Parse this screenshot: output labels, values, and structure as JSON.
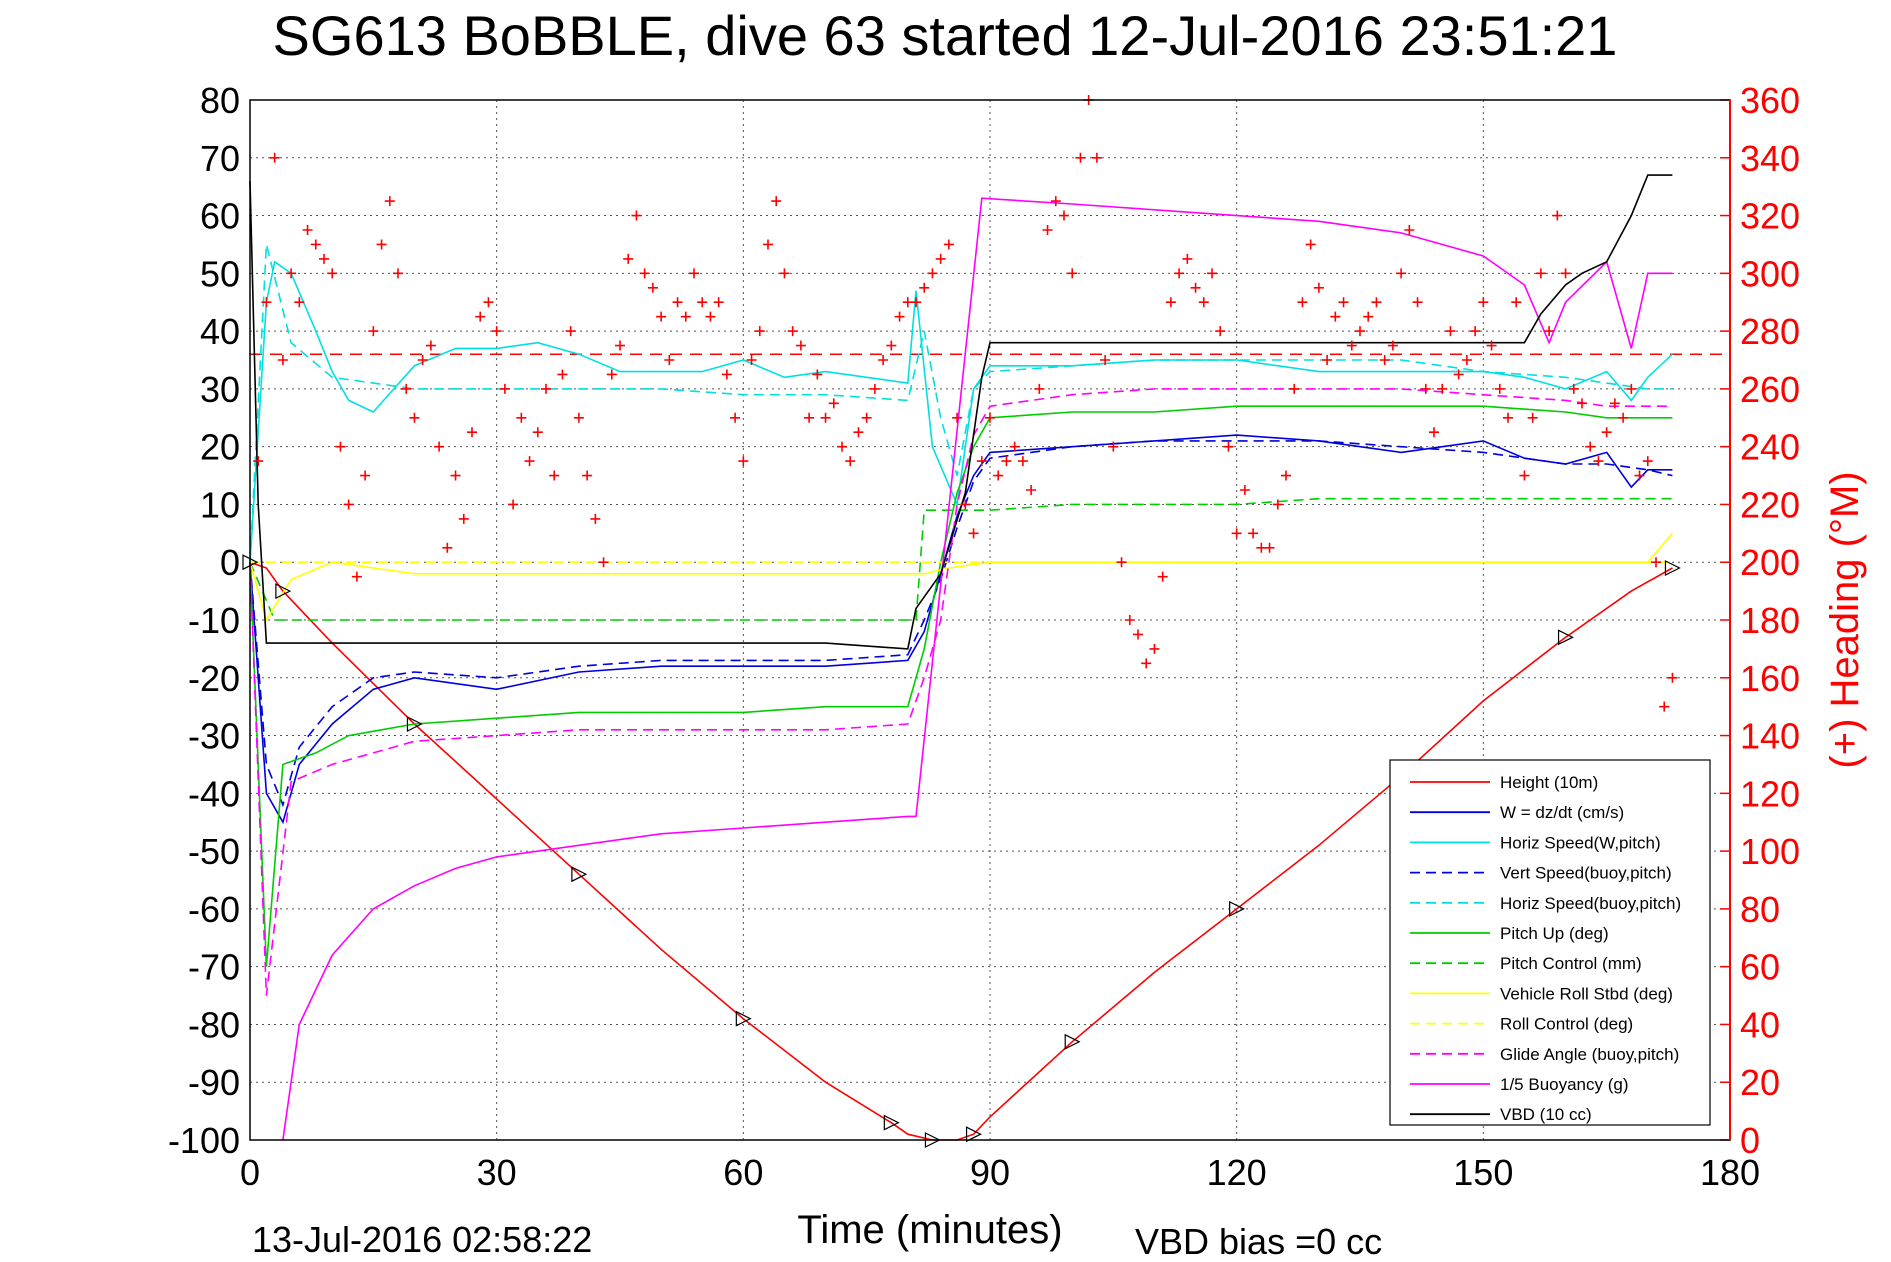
{
  "chart_data": {
    "type": "line",
    "title": "SG613 BoBBLE, dive 63 started 12-Jul-2016 23:51:21",
    "xlabel": "Time (minutes)",
    "ylabel_right": "(+) Heading (°M)",
    "xlim": [
      0,
      180
    ],
    "ylim_left": [
      -100,
      80
    ],
    "ylim_right": [
      0,
      360
    ],
    "x_ticks": [
      "0",
      "30",
      "60",
      "90",
      "120",
      "150",
      "180"
    ],
    "y_left_ticks": [
      "80",
      "70",
      "60",
      "50",
      "40",
      "30",
      "20",
      "10",
      "0",
      "-10",
      "-20",
      "-30",
      "-40",
      "-50",
      "-60",
      "-70",
      "-80",
      "-90",
      "-100"
    ],
    "y_right_ticks": [
      "360",
      "340",
      "320",
      "300",
      "280",
      "260",
      "240",
      "220",
      "200",
      "180",
      "160",
      "140",
      "120",
      "100",
      "80",
      "60",
      "40",
      "20",
      "0"
    ],
    "grid": true,
    "legend_position": "bottom-right",
    "footer_left": "13-Jul-2016 02:58:22",
    "footer_right": "VBD bias =0 cc",
    "heading_target": 272,
    "series": [
      {
        "name": "Height (10m)",
        "color": "#ff0000",
        "style": "solid",
        "x": [
          0,
          2,
          4,
          10,
          20,
          30,
          40,
          50,
          60,
          70,
          78,
          80,
          83,
          86,
          88,
          90,
          100,
          110,
          120,
          130,
          140,
          150,
          160,
          168,
          173
        ],
        "y": [
          0,
          -1,
          -5,
          -14,
          -28,
          -41,
          -54,
          -67,
          -79,
          -90,
          -97,
          -99,
          -100,
          -100,
          -99,
          -96,
          -83,
          -71,
          -60,
          -49,
          -37,
          -24,
          -13,
          -5,
          -1
        ]
      },
      {
        "name": "W = dz/dt (cm/s)",
        "color": "#0000dd",
        "style": "solid",
        "x": [
          0,
          2,
          4,
          6,
          10,
          15,
          20,
          30,
          40,
          50,
          60,
          70,
          80,
          82,
          84,
          86,
          88,
          90,
          100,
          110,
          120,
          130,
          140,
          150,
          155,
          160,
          165,
          168,
          170,
          173
        ],
        "y": [
          0,
          -40,
          -45,
          -35,
          -28,
          -22,
          -20,
          -22,
          -19,
          -18,
          -18,
          -18,
          -17,
          -12,
          -2,
          8,
          15,
          19,
          20,
          21,
          22,
          21,
          19,
          21,
          18,
          17,
          19,
          13,
          16,
          16
        ]
      },
      {
        "name": "Horiz Speed(W,pitch)",
        "color": "#00e0e0",
        "style": "solid",
        "x": [
          0,
          2,
          3,
          5,
          8,
          10,
          12,
          15,
          20,
          25,
          30,
          35,
          40,
          45,
          50,
          55,
          60,
          65,
          70,
          75,
          80,
          81,
          83,
          86,
          88,
          90,
          100,
          110,
          120,
          130,
          140,
          150,
          155,
          160,
          165,
          168,
          170,
          173
        ],
        "y": [
          0,
          45,
          52,
          50,
          40,
          33,
          28,
          26,
          34,
          37,
          37,
          38,
          36,
          33,
          33,
          33,
          35,
          32,
          33,
          32,
          31,
          47,
          20,
          10,
          30,
          34,
          34,
          35,
          35,
          33,
          33,
          33,
          32,
          30,
          33,
          28,
          32,
          36
        ]
      },
      {
        "name": "Vert Speed(buoy,pitch)",
        "color": "#0000dd",
        "style": "dashed",
        "x": [
          0,
          2,
          4,
          6,
          10,
          15,
          20,
          30,
          40,
          50,
          60,
          70,
          80,
          82,
          84,
          86,
          88,
          90,
          100,
          110,
          120,
          130,
          140,
          150,
          160,
          165,
          170,
          173
        ],
        "y": [
          0,
          -35,
          -42,
          -32,
          -25,
          -20,
          -19,
          -20,
          -18,
          -17,
          -17,
          -17,
          -16,
          -10,
          -3,
          6,
          14,
          18,
          20,
          21,
          21,
          21,
          20,
          19,
          17,
          17,
          16,
          15
        ]
      },
      {
        "name": "Horiz Speed(buoy,pitch)",
        "color": "#00e0e0",
        "style": "dashed",
        "x": [
          0,
          2,
          5,
          10,
          15,
          20,
          30,
          40,
          50,
          60,
          70,
          80,
          82,
          84,
          86,
          88,
          90,
          100,
          110,
          120,
          130,
          140,
          150,
          160,
          170,
          173
        ],
        "y": [
          0,
          55,
          38,
          32,
          31,
          30,
          30,
          30,
          30,
          29,
          29,
          28,
          40,
          25,
          15,
          30,
          33,
          34,
          35,
          35,
          35,
          35,
          33,
          32,
          30,
          30
        ]
      },
      {
        "name": "Pitch Up (deg)",
        "color": "#00cc00",
        "style": "solid",
        "x": [
          0,
          2,
          4,
          8,
          12,
          16,
          20,
          30,
          40,
          50,
          60,
          70,
          80,
          82,
          84,
          86,
          88,
          90,
          100,
          110,
          120,
          130,
          140,
          150,
          160,
          165,
          170,
          173
        ],
        "y": [
          0,
          -70,
          -35,
          -33,
          -30,
          -29,
          -28,
          -27,
          -26,
          -26,
          -26,
          -25,
          -25,
          -15,
          0,
          12,
          20,
          25,
          26,
          26,
          27,
          27,
          27,
          27,
          26,
          25,
          25,
          25
        ]
      },
      {
        "name": "Pitch Control (mm)",
        "color": "#00cc00",
        "style": "dashed",
        "x": [
          0,
          3,
          10,
          20,
          30,
          40,
          50,
          60,
          70,
          81,
          82,
          90,
          100,
          110,
          120,
          130,
          140,
          150,
          160,
          170,
          173
        ],
        "y": [
          0,
          -10,
          -10,
          -10,
          -10,
          -10,
          -10,
          -10,
          -10,
          -10,
          9,
          9,
          10,
          10,
          10,
          11,
          11,
          11,
          11,
          11,
          11
        ]
      },
      {
        "name": "Vehicle Roll Stbd (deg)",
        "color": "#ffff00",
        "style": "solid",
        "x": [
          0,
          2,
          5,
          10,
          20,
          30,
          40,
          50,
          60,
          70,
          80,
          82,
          85,
          90,
          100,
          110,
          120,
          130,
          140,
          150,
          160,
          170,
          173
        ],
        "y": [
          0,
          -10,
          -3,
          0,
          -2,
          -2,
          -2,
          -2,
          -2,
          -2,
          -2,
          -2,
          -1,
          0,
          0,
          0,
          0,
          0,
          0,
          0,
          0,
          0,
          5
        ]
      },
      {
        "name": "Roll Control (deg)",
        "color": "#ffff00",
        "style": "dashed",
        "x": [
          0,
          10,
          20,
          30,
          40,
          50,
          60,
          70,
          80,
          90,
          100,
          110,
          120,
          130,
          140,
          150,
          160,
          170,
          173
        ],
        "y": [
          0,
          0,
          0,
          0,
          0,
          0,
          0,
          0,
          0,
          0,
          0,
          0,
          0,
          0,
          0,
          0,
          0,
          0,
          0
        ]
      },
      {
        "name": "Glide Angle (buoy,pitch)",
        "color": "#ff00ff",
        "style": "dashed",
        "x": [
          0,
          2,
          5,
          10,
          15,
          20,
          30,
          40,
          50,
          60,
          70,
          80,
          82,
          84,
          86,
          88,
          90,
          100,
          110,
          120,
          130,
          140,
          150,
          160,
          165,
          170,
          173
        ],
        "y": [
          0,
          -75,
          -38,
          -35,
          -33,
          -31,
          -30,
          -29,
          -29,
          -29,
          -29,
          -28,
          -20,
          -10,
          10,
          22,
          27,
          29,
          30,
          30,
          30,
          30,
          29,
          28,
          27,
          27,
          27
        ]
      },
      {
        "name": "1/5 Buoyancy (g)",
        "color": "#ff00ff",
        "style": "solid",
        "x": [
          4,
          6,
          10,
          15,
          20,
          25,
          30,
          40,
          50,
          60,
          70,
          80,
          81,
          89,
          100,
          110,
          120,
          130,
          140,
          150,
          155,
          158,
          160,
          165,
          168,
          170,
          173
        ],
        "y": [
          -100,
          -80,
          -68,
          -60,
          -56,
          -53,
          -51,
          -49,
          -47,
          -46,
          -45,
          -44,
          -44,
          63,
          62,
          61,
          60,
          59,
          57,
          53,
          48,
          38,
          45,
          52,
          37,
          50,
          50
        ]
      },
      {
        "name": "VBD (10 cc)",
        "color": "#000000",
        "style": "solid",
        "x": [
          0,
          1,
          2,
          3,
          10,
          20,
          30,
          40,
          50,
          60,
          70,
          80,
          81,
          84,
          87,
          89,
          90,
          100,
          110,
          120,
          130,
          140,
          150,
          155,
          157,
          160,
          162,
          165,
          168,
          170,
          173
        ],
        "y": [
          66,
          10,
          -14,
          -14,
          -14,
          -14,
          -14,
          -14,
          -14,
          -14,
          -14,
          -15,
          -8,
          -2,
          12,
          32,
          38,
          38,
          38,
          38,
          38,
          38,
          38,
          38,
          43,
          48,
          50,
          52,
          60,
          67,
          67
        ]
      }
    ],
    "heading_series": {
      "name": "(+) Heading",
      "color": "#ff0000",
      "marker": "+",
      "x": [
        1,
        2,
        3,
        4,
        5,
        6,
        7,
        8,
        9,
        10,
        11,
        12,
        13,
        14,
        15,
        16,
        17,
        18,
        19,
        20,
        21,
        22,
        23,
        24,
        25,
        26,
        27,
        28,
        29,
        30,
        31,
        32,
        33,
        34,
        35,
        36,
        37,
        38,
        39,
        40,
        41,
        42,
        43,
        44,
        45,
        46,
        47,
        48,
        49,
        50,
        51,
        52,
        53,
        54,
        55,
        56,
        57,
        58,
        59,
        60,
        61,
        62,
        63,
        64,
        65,
        66,
        67,
        68,
        69,
        70,
        71,
        72,
        73,
        74,
        75,
        76,
        77,
        78,
        79,
        80,
        81,
        82,
        83,
        84,
        85,
        86,
        87,
        88,
        89,
        90,
        91,
        92,
        93,
        94,
        95,
        96,
        97,
        98,
        99,
        100,
        101,
        102,
        103,
        104,
        105,
        106,
        107,
        108,
        109,
        110,
        111,
        112,
        113,
        114,
        115,
        116,
        117,
        118,
        119,
        120,
        121,
        122,
        123,
        124,
        125,
        126,
        127,
        128,
        129,
        130,
        131,
        132,
        133,
        134,
        135,
        136,
        137,
        138,
        139,
        140,
        141,
        142,
        143,
        144,
        145,
        146,
        147,
        148,
        149,
        150,
        151,
        152,
        153,
        154,
        155,
        156,
        157,
        158,
        159,
        160,
        161,
        162,
        163,
        164,
        165,
        166,
        167,
        168,
        169,
        170,
        171,
        172,
        173
      ],
      "y": [
        235,
        290,
        340,
        270,
        300,
        290,
        315,
        310,
        305,
        300,
        240,
        220,
        195,
        230,
        280,
        310,
        325,
        300,
        260,
        250,
        270,
        275,
        240,
        205,
        230,
        215,
        245,
        285,
        290,
        280,
        260,
        220,
        250,
        235,
        245,
        260,
        230,
        265,
        280,
        250,
        230,
        215,
        200,
        265,
        275,
        305,
        320,
        300,
        295,
        285,
        270,
        290,
        285,
        300,
        290,
        285,
        290,
        265,
        250,
        235,
        270,
        280,
        310,
        325,
        300,
        280,
        275,
        250,
        265,
        250,
        255,
        240,
        235,
        245,
        250,
        260,
        270,
        275,
        285,
        290,
        290,
        295,
        300,
        305,
        310,
        250,
        220,
        210,
        235,
        250,
        230,
        235,
        240,
        235,
        225,
        260,
        315,
        325,
        320,
        300,
        340,
        360,
        340,
        270,
        240,
        200,
        180,
        175,
        165,
        170,
        195,
        290,
        300,
        305,
        295,
        290,
        300,
        280,
        240,
        210,
        225,
        210,
        205,
        205,
        220,
        230,
        260,
        290,
        310,
        295,
        270,
        285,
        290,
        275,
        280,
        285,
        290,
        270,
        275,
        300,
        315,
        290,
        260,
        245,
        260,
        280,
        265,
        270,
        280,
        290,
        275,
        260,
        250,
        290,
        230,
        250,
        300,
        280,
        320,
        300,
        260,
        255,
        240,
        235,
        245,
        255,
        250,
        260,
        230,
        235,
        200,
        150,
        160
      ]
    }
  }
}
